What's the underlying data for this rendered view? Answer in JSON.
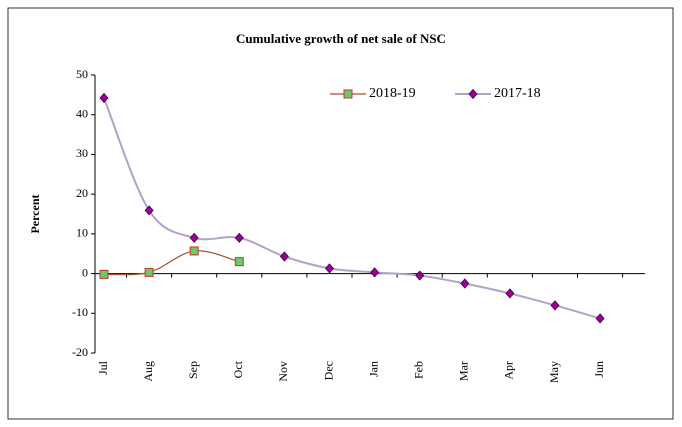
{
  "chart_data": {
    "type": "line",
    "title": "Cumulative growth of net sale of NSC",
    "y_label": "Percent",
    "categories": [
      "Jul",
      "Aug",
      "Sep",
      "Oct",
      "Nov",
      "Dec",
      "Jan",
      "Feb",
      "Mar",
      "Apr",
      "May",
      "Jun"
    ],
    "series": [
      {
        "name": "2018-19",
        "color": "#a0522d",
        "marker_color": "#66cc66",
        "marker_edge": "#cc3333",
        "marker": "square",
        "values": [
          -0.2,
          0.3,
          5.7,
          3.0,
          null,
          null,
          null,
          null,
          null,
          null,
          null,
          null
        ]
      },
      {
        "name": "2017-18",
        "color": "#b3a2c7",
        "marker_color": "#990099",
        "marker_edge": "#440044",
        "marker": "diamond",
        "values": [
          44.2,
          15.9,
          9.0,
          9.0,
          4.3,
          1.3,
          0.3,
          -0.5,
          -2.5,
          -5.0,
          -8.0,
          -11.3
        ]
      }
    ],
    "ylim": [
      -20,
      50
    ],
    "yticks": [
      -20,
      -10,
      0,
      10,
      20,
      30,
      40,
      50
    ],
    "legend": "top-right",
    "grid": false
  }
}
